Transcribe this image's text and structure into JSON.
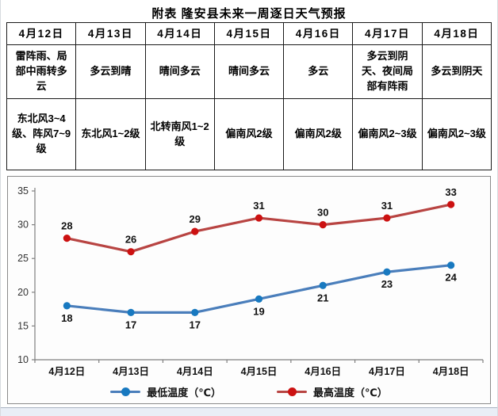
{
  "title": "附表 隆安县未来一周逐日天气预报",
  "table": {
    "dates": [
      "4月12日",
      "4月13日",
      "4月14日",
      "4月15日",
      "4月16日",
      "4月17日",
      "4月18日"
    ],
    "weather": [
      "雷阵雨、局部中雨转多云",
      "多云到晴",
      "晴间多云",
      "晴间多云",
      "多云",
      "多云到阴天、夜间局部有阵雨",
      "多云到阴天"
    ],
    "wind": [
      "东北风3~4级、阵风7~9级",
      "东北风1~2级",
      "北转南风1~2级",
      "偏南风2级",
      "偏南风2级",
      "偏南风2~3级",
      "偏南风2~3级"
    ]
  },
  "chart_data": {
    "type": "line",
    "categories": [
      "4月12日",
      "4月13日",
      "4月14日",
      "4月15日",
      "4月16日",
      "4月17日",
      "4月18日"
    ],
    "series": [
      {
        "name": "最低温度（℃）",
        "values": [
          18,
          17,
          17,
          19,
          21,
          23,
          24
        ],
        "color": "#4a7ebb",
        "marker_color": "#1879c0",
        "label_position": "below"
      },
      {
        "name": "最高温度（℃）",
        "values": [
          28,
          26,
          29,
          31,
          30,
          31,
          33
        ],
        "color": "#b84442",
        "marker_color": "#cc1111",
        "label_position": "above"
      }
    ],
    "title": "",
    "xlabel": "",
    "ylabel": "",
    "ylim": [
      10,
      35
    ],
    "ytick_step": 5,
    "grid": false,
    "legend_position": "bottom",
    "axis_color": "#7f7f7f",
    "ytick_label_color": "#333333",
    "xtick_label_color": "#111111",
    "data_label_color": "#111111"
  }
}
